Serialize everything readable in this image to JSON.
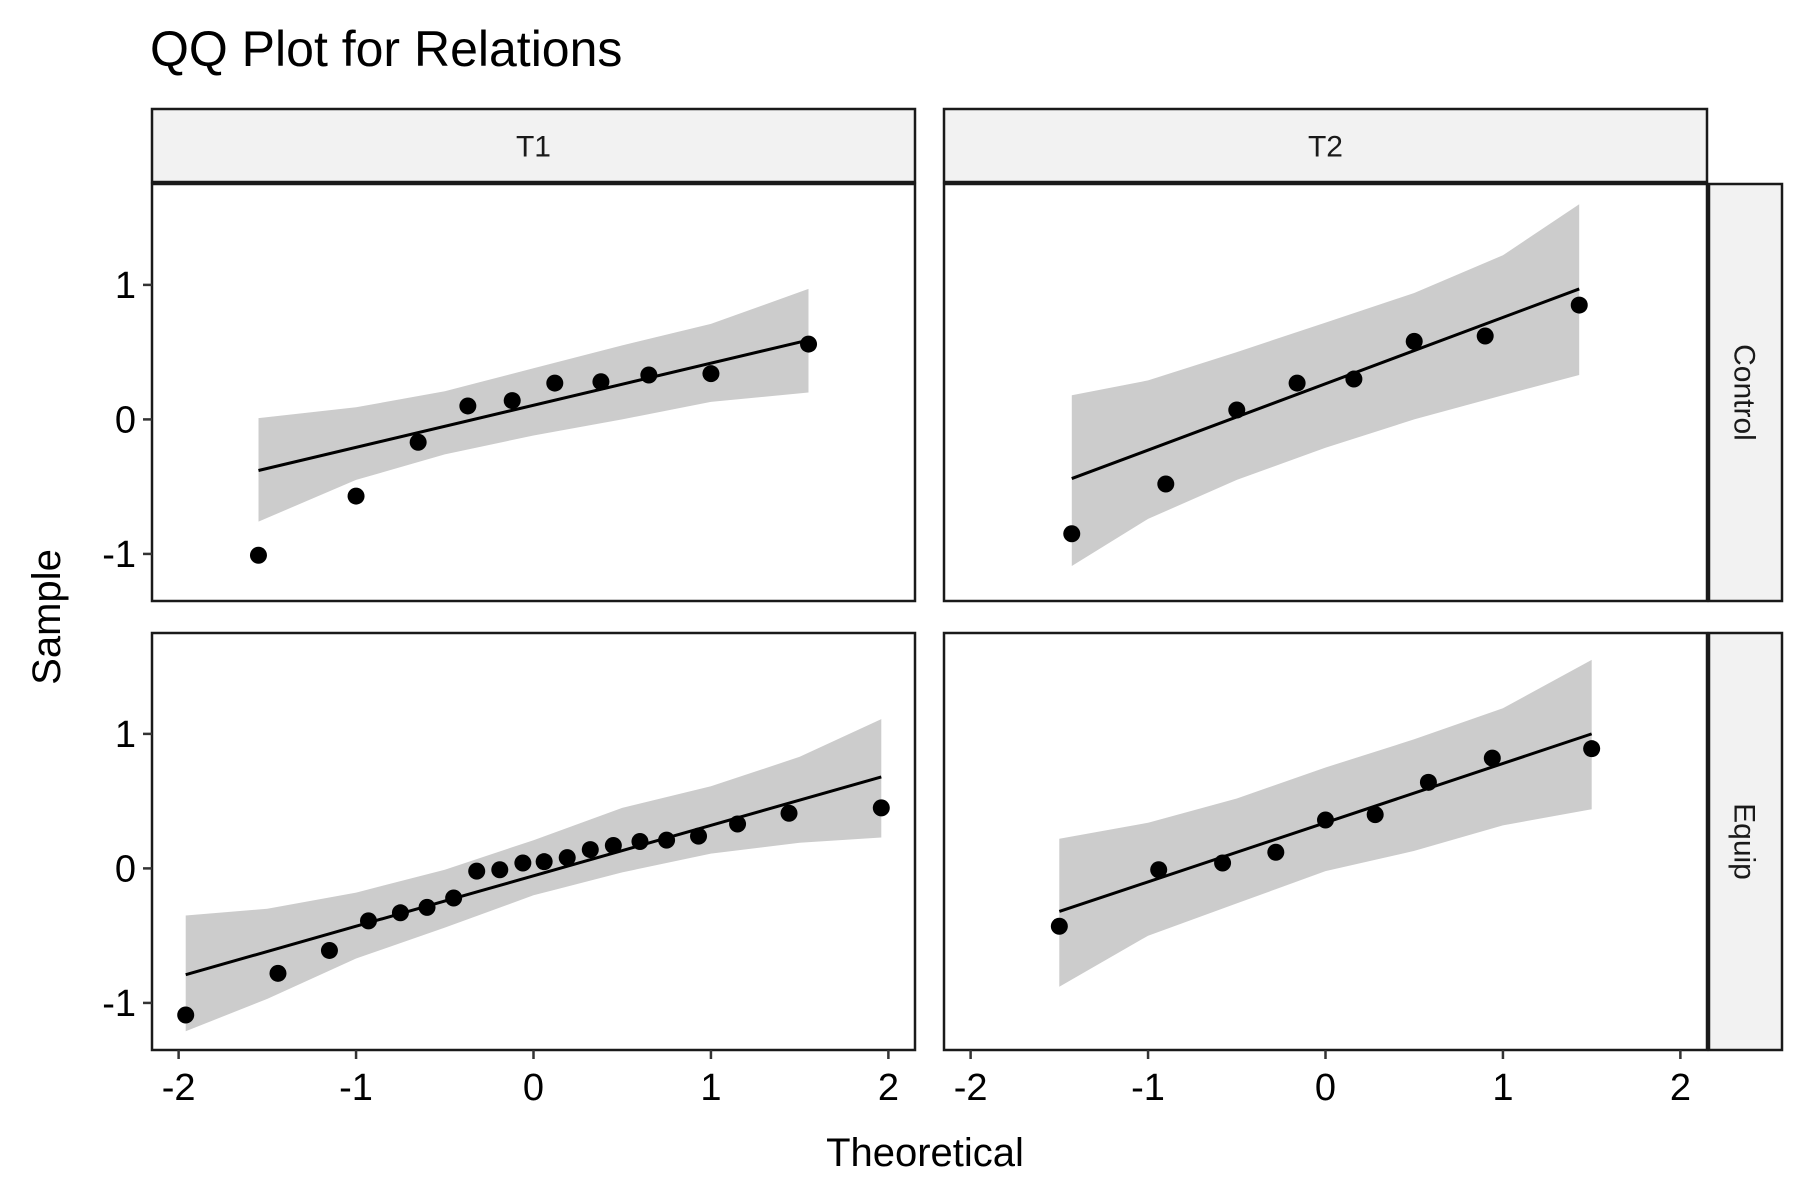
{
  "chart_data": {
    "type": "scatter",
    "title": "QQ Plot for Relations",
    "xlabel": "Theoretical",
    "ylabel": "Sample",
    "xlim": [
      -2.15,
      2.15
    ],
    "ylim": [
      -1.35,
      1.75
    ],
    "x_ticks": [
      -2,
      -1,
      0,
      1,
      2
    ],
    "x_tick_labels": [
      "-2",
      "-1",
      "0",
      "1",
      "2"
    ],
    "y_ticks": [
      -1,
      0,
      1
    ],
    "y_tick_labels": [
      "-1",
      "0",
      "1"
    ],
    "columns": [
      "T1",
      "T2"
    ],
    "rows": [
      "Control",
      "Equip"
    ],
    "colors": {
      "point": "#000000",
      "line": "#000000",
      "band": "#cccccc",
      "strip": "#f2f2f2"
    },
    "panels": [
      {
        "column": "T1",
        "row": "Control",
        "points": [
          [
            -1.55,
            -1.01
          ],
          [
            -1.0,
            -0.57
          ],
          [
            -0.65,
            -0.17
          ],
          [
            -0.37,
            0.1
          ],
          [
            -0.12,
            0.14
          ],
          [
            0.12,
            0.27
          ],
          [
            0.38,
            0.28
          ],
          [
            0.65,
            0.33
          ],
          [
            1.0,
            0.34
          ],
          [
            1.55,
            0.56
          ]
        ],
        "line": [
          [
            -1.55,
            -0.38
          ],
          [
            1.55,
            0.59
          ]
        ],
        "band": [
          [
            -1.55,
            -0.76,
            0.01
          ],
          [
            -1.0,
            -0.45,
            0.09
          ],
          [
            -0.5,
            -0.26,
            0.21
          ],
          [
            0.0,
            -0.12,
            0.38
          ],
          [
            0.5,
            0.0,
            0.55
          ],
          [
            1.0,
            0.13,
            0.71
          ],
          [
            1.55,
            0.2,
            0.97
          ]
        ]
      },
      {
        "column": "T2",
        "row": "Control",
        "points": [
          [
            -1.43,
            -0.85
          ],
          [
            -0.9,
            -0.48
          ],
          [
            -0.5,
            0.07
          ],
          [
            -0.16,
            0.27
          ],
          [
            0.16,
            0.3
          ],
          [
            0.5,
            0.58
          ],
          [
            0.9,
            0.62
          ],
          [
            1.43,
            0.85
          ]
        ],
        "line": [
          [
            -1.43,
            -0.44
          ],
          [
            1.43,
            0.97
          ]
        ],
        "band": [
          [
            -1.43,
            -1.09,
            0.18
          ],
          [
            -1.0,
            -0.74,
            0.29
          ],
          [
            -0.5,
            -0.45,
            0.5
          ],
          [
            0.0,
            -0.21,
            0.72
          ],
          [
            0.5,
            0.0,
            0.94
          ],
          [
            1.0,
            0.18,
            1.22
          ],
          [
            1.43,
            0.33,
            1.6
          ]
        ]
      },
      {
        "column": "T1",
        "row": "Equip",
        "points": [
          [
            -1.96,
            -1.09
          ],
          [
            -1.44,
            -0.78
          ],
          [
            -1.15,
            -0.61
          ],
          [
            -0.93,
            -0.39
          ],
          [
            -0.75,
            -0.33
          ],
          [
            -0.6,
            -0.29
          ],
          [
            -0.45,
            -0.22
          ],
          [
            -0.32,
            -0.02
          ],
          [
            -0.19,
            -0.01
          ],
          [
            -0.06,
            0.04
          ],
          [
            0.06,
            0.05
          ],
          [
            0.19,
            0.08
          ],
          [
            0.32,
            0.14
          ],
          [
            0.45,
            0.17
          ],
          [
            0.6,
            0.2
          ],
          [
            0.75,
            0.21
          ],
          [
            0.93,
            0.24
          ],
          [
            1.15,
            0.33
          ],
          [
            1.44,
            0.41
          ],
          [
            1.96,
            0.45
          ]
        ],
        "line": [
          [
            -1.96,
            -0.79
          ],
          [
            1.96,
            0.68
          ]
        ],
        "band": [
          [
            -1.96,
            -1.21,
            -0.35
          ],
          [
            -1.5,
            -0.97,
            -0.3
          ],
          [
            -1.0,
            -0.67,
            -0.18
          ],
          [
            -0.5,
            -0.44,
            -0.01
          ],
          [
            0.0,
            -0.2,
            0.21
          ],
          [
            0.5,
            -0.03,
            0.45
          ],
          [
            1.0,
            0.11,
            0.61
          ],
          [
            1.5,
            0.19,
            0.83
          ],
          [
            1.96,
            0.23,
            1.11
          ]
        ]
      },
      {
        "column": "T2",
        "row": "Equip",
        "points": [
          [
            -1.5,
            -0.43
          ],
          [
            -0.94,
            -0.01
          ],
          [
            -0.58,
            0.04
          ],
          [
            -0.28,
            0.12
          ],
          [
            0.0,
            0.36
          ],
          [
            0.28,
            0.4
          ],
          [
            0.58,
            0.64
          ],
          [
            0.94,
            0.82
          ],
          [
            1.5,
            0.89
          ]
        ],
        "line": [
          [
            -1.5,
            -0.32
          ],
          [
            1.5,
            1.0
          ]
        ],
        "band": [
          [
            -1.5,
            -0.88,
            0.22
          ],
          [
            -1.0,
            -0.5,
            0.34
          ],
          [
            -0.5,
            -0.26,
            0.52
          ],
          [
            0.0,
            -0.02,
            0.75
          ],
          [
            0.5,
            0.13,
            0.96
          ],
          [
            1.0,
            0.32,
            1.19
          ],
          [
            1.5,
            0.44,
            1.55
          ]
        ]
      }
    ]
  }
}
